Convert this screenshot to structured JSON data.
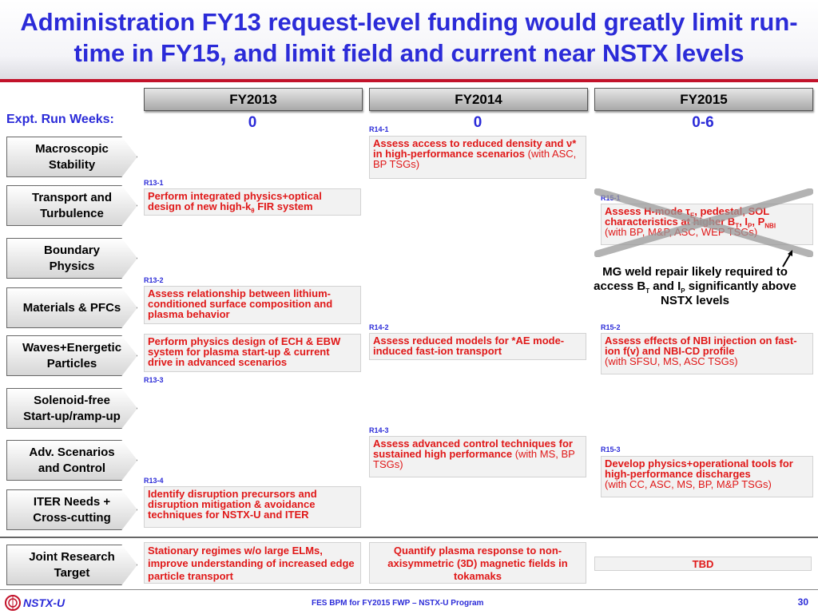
{
  "title": "Administration FY13 request-level funding would greatly limit run-time in FY15, and limit field and current near NSTX levels",
  "years": [
    "FY2013",
    "FY2014",
    "FY2015"
  ],
  "run_weeks": {
    "label": "Expt. Run Weeks:",
    "values": [
      "0",
      "0",
      "0-6"
    ]
  },
  "topics": [
    {
      "line1": "Macroscopic",
      "line2": "Stability"
    },
    {
      "line1": "Transport and",
      "line2": "Turbulence"
    },
    {
      "line1": "Boundary",
      "line2": "Physics"
    },
    {
      "line1": "Materials & PFCs",
      "line2": ""
    },
    {
      "line1": "Waves+Energetic",
      "line2": "Particles"
    },
    {
      "line1": "Solenoid-free",
      "line2": "Start-up/ramp-up"
    },
    {
      "line1": "Adv. Scenarios",
      "line2": "and Control"
    },
    {
      "line1": "ITER Needs +",
      "line2": "Cross-cutting"
    },
    {
      "line1": "Joint Research",
      "line2": "Target"
    }
  ],
  "fy13": {
    "r1": {
      "code": "R13-1",
      "text_a": "Perform integrated physics+optical design of new high-k",
      "sub": "θ",
      "text_b": " FIR system"
    },
    "r2": {
      "code": "R13-2",
      "text": "Assess relationship between lithium-conditioned surface composition and plasma behavior"
    },
    "r2b": {
      "text": "Perform physics design of ECH & EBW system for plasma start-up & current drive in advanced scenarios"
    },
    "r3": {
      "code": "R13-3"
    },
    "r4": {
      "code": "R13-4",
      "text": "Identify disruption precursors and disruption mitigation & avoidance techniques for NSTX-U and ITER"
    },
    "joint": "Stationary regimes w/o large ELMs, improve understanding of increased edge particle transport"
  },
  "fy14": {
    "r1": {
      "code": "R14-1",
      "text_a": "Assess access to reduced density and ν* in high-performance scenarios",
      "note": " (with ASC, BP TSGs)"
    },
    "r2": {
      "code": "R14-2",
      "text": "Assess reduced models for *AE mode-induced fast-ion transport"
    },
    "r3": {
      "code": "R14-3",
      "text": "Assess advanced control techniques for sustained high performance",
      "note": " (with MS, BP TSGs)"
    },
    "joint": "Quantify plasma response to non-axisymmetric (3D) magnetic fields in tokamaks"
  },
  "fy15": {
    "r1": {
      "code": "R15-1",
      "t1": "Assess H-mode τ",
      "s1": "E",
      "t2": ", pedestal, SOL characteristics at higher B",
      "s2": "T",
      "t3": ", I",
      "s3": "P",
      "t4": ", P",
      "s4": "NBI",
      "note": "(with BP, M&P, ASC, WEP TSGs)"
    },
    "r2": {
      "code": "R15-2",
      "text": "Assess effects of NBI injection on fast-ion f(v) and NBI-CD profile",
      "note": "(with SFSU, MS, ASC TSGs)"
    },
    "r3": {
      "code": "R15-3",
      "text": "Develop physics+operational tools for high-performance discharges",
      "note": "(with CC, ASC, MS, BP, M&P TSGs)"
    },
    "joint": "TBD"
  },
  "note": {
    "t1": "MG weld repair likely required to access B",
    "s1": "T",
    "t2": " and I",
    "s2": "P",
    "t3": " significantly above NSTX levels"
  },
  "footer": {
    "logo": "NSTX-U",
    "center": "FES BPM for FY2015 FWP – NSTX-U Program",
    "page": "30"
  },
  "colors": {
    "title": "#2b2bd8",
    "task": "#e01818",
    "rule": "#c2122a"
  }
}
